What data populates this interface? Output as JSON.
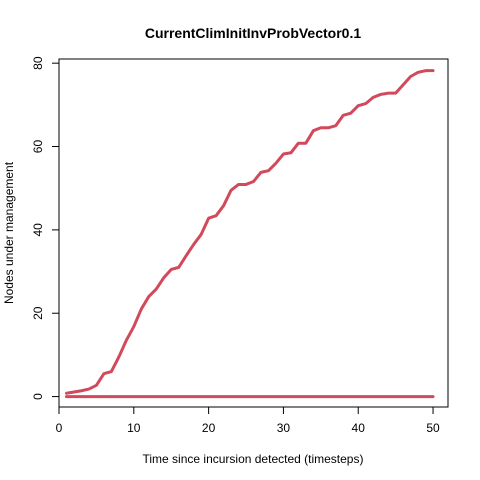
{
  "chart_data": {
    "type": "line",
    "title": "CurrentClimInitInvProbVector0.1",
    "xlabel": "Time since incursion detected (timesteps)",
    "ylabel": "Nodes under management",
    "xlim": [
      0,
      52
    ],
    "ylim": [
      -2.5,
      81
    ],
    "xticks": [
      0,
      10,
      20,
      30,
      40,
      50
    ],
    "yticks": [
      0,
      20,
      40,
      60,
      80
    ],
    "grid": false,
    "legend": "none",
    "series": [
      {
        "color": "#D1495B",
        "x": [
          1,
          2,
          3,
          4,
          5,
          6,
          7,
          8,
          9,
          10,
          11,
          12,
          13,
          14,
          15,
          16,
          17,
          18,
          19,
          20,
          21,
          22,
          23,
          24,
          25,
          26,
          27,
          28,
          29,
          30,
          31,
          32,
          33,
          34,
          35,
          36,
          37,
          38,
          39,
          40,
          41,
          42,
          43,
          44,
          45,
          46,
          47,
          48,
          49,
          50
        ],
        "y": [
          0.8,
          1.1,
          1.4,
          1.8,
          2.7,
          5.5,
          6.0,
          9.5,
          13.5,
          16.8,
          21.0,
          24.0,
          25.8,
          28.5,
          30.5,
          31.0,
          33.8,
          36.5,
          38.9,
          42.8,
          43.4,
          45.8,
          49.5,
          50.9,
          50.9,
          51.6,
          53.8,
          54.2,
          56.0,
          58.2,
          58.5,
          60.8,
          60.8,
          63.8,
          64.5,
          64.5,
          65.0,
          67.5,
          68.0,
          69.8,
          70.3,
          71.8,
          72.5,
          72.8,
          72.8,
          74.8,
          76.8,
          77.8,
          78.2,
          78.2
        ]
      },
      {
        "color": "#D1495B",
        "x": [
          1,
          50
        ],
        "y": [
          0,
          0
        ]
      }
    ]
  }
}
